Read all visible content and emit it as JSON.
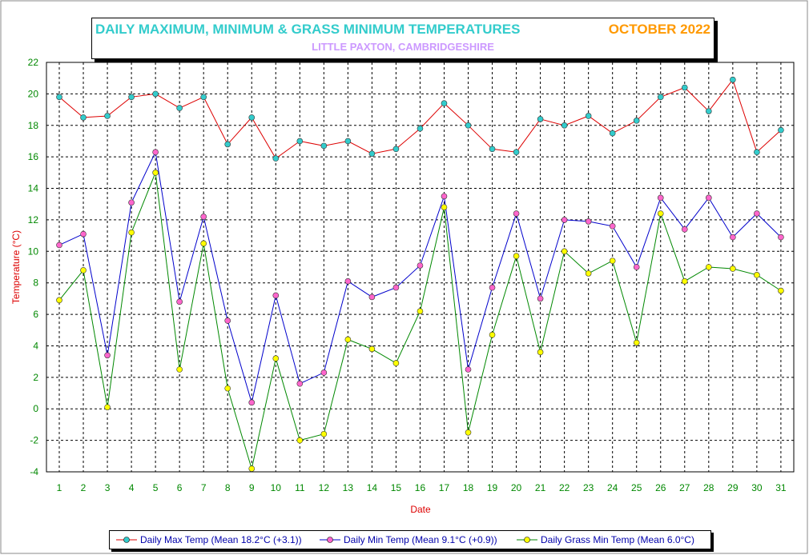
{
  "title": {
    "main": "DAILY MAXIMUM, MINIMUM & GRASS MINIMUM TEMPERATURES",
    "month": "OCTOBER 2022",
    "subtitle": "LITTLE PAXTON, CAMBRIDGESHIRE"
  },
  "colors": {
    "max_line": "#dd0000",
    "max_marker": "#33cccc",
    "min_line": "#0000cc",
    "min_marker": "#ff66cc",
    "grass_line": "#008800",
    "grass_marker": "#ffff00",
    "axis_label": "#dd0000",
    "tick_label": "#008800"
  },
  "chart_data": {
    "type": "line",
    "title": "DAILY MAXIMUM, MINIMUM & GRASS MINIMUM TEMPERATURES",
    "xlabel": "Date",
    "ylabel": "Temperature (°C)",
    "ylim": [
      -4,
      22
    ],
    "yticks": [
      -4,
      -2,
      0,
      2,
      4,
      6,
      8,
      10,
      12,
      14,
      16,
      18,
      20,
      22
    ],
    "grid": true,
    "legend_position": "bottom",
    "x": [
      1,
      2,
      3,
      4,
      5,
      6,
      7,
      8,
      9,
      10,
      11,
      12,
      13,
      14,
      15,
      16,
      17,
      18,
      19,
      20,
      21,
      22,
      23,
      24,
      25,
      26,
      27,
      28,
      29,
      30,
      31
    ],
    "series": [
      {
        "name": "Daily Max Temp (Mean 18.2°C (+3.1))",
        "values": [
          19.8,
          18.5,
          18.6,
          19.8,
          20.0,
          19.1,
          19.8,
          16.8,
          18.5,
          15.9,
          17.0,
          16.7,
          17.0,
          16.2,
          16.5,
          17.8,
          19.4,
          18.0,
          16.5,
          16.3,
          18.4,
          18.0,
          18.6,
          17.5,
          18.3,
          19.8,
          20.4,
          18.9,
          20.9,
          16.3,
          17.7
        ]
      },
      {
        "name": "Daily Min Temp (Mean 9.1°C (+0.9))",
        "values": [
          10.4,
          11.1,
          3.4,
          13.1,
          16.3,
          6.8,
          12.2,
          5.6,
          0.4,
          7.2,
          1.6,
          2.3,
          8.1,
          7.1,
          7.7,
          9.1,
          13.5,
          2.5,
          7.7,
          12.4,
          7.0,
          12.0,
          11.9,
          11.6,
          9.0,
          13.4,
          11.4,
          13.4,
          10.9,
          12.4,
          10.9
        ]
      },
      {
        "name": "Daily Grass Min Temp (Mean 6.0°C)",
        "values": [
          6.9,
          8.8,
          0.1,
          11.2,
          15.0,
          2.5,
          10.5,
          1.3,
          -3.8,
          3.2,
          -2.0,
          -1.6,
          4.4,
          3.8,
          2.9,
          6.2,
          12.8,
          -1.5,
          4.7,
          9.7,
          3.6,
          10.0,
          8.6,
          9.4,
          4.2,
          12.4,
          8.1,
          9.0,
          8.9,
          8.5,
          7.5
        ]
      }
    ]
  }
}
